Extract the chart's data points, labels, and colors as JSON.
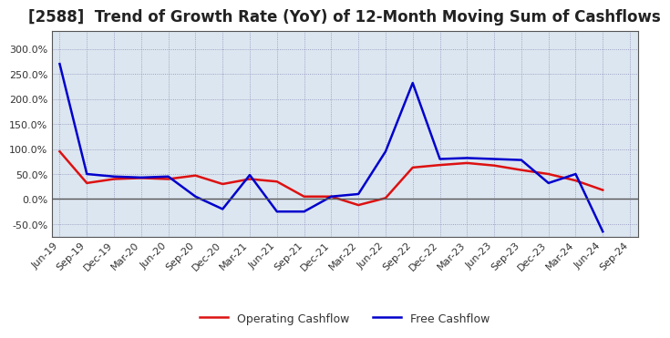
{
  "title": "[2588]  Trend of Growth Rate (YoY) of 12-Month Moving Sum of Cashflows",
  "title_fontsize": 12,
  "labels": [
    "Jun-19",
    "Sep-19",
    "Dec-19",
    "Mar-20",
    "Jun-20",
    "Sep-20",
    "Dec-20",
    "Mar-21",
    "Jun-21",
    "Sep-21",
    "Dec-21",
    "Mar-22",
    "Jun-22",
    "Sep-22",
    "Dec-22",
    "Mar-23",
    "Jun-23",
    "Sep-23",
    "Dec-23",
    "Mar-24",
    "Jun-24",
    "Sep-24"
  ],
  "operating_cashflow": [
    95,
    32,
    40,
    42,
    40,
    47,
    30,
    40,
    35,
    5,
    5,
    -12,
    2,
    63,
    68,
    72,
    67,
    58,
    50,
    37,
    18,
    null
  ],
  "free_cashflow": [
    270,
    50,
    45,
    43,
    45,
    5,
    -20,
    48,
    -25,
    -25,
    5,
    10,
    95,
    232,
    80,
    82,
    80,
    78,
    32,
    50,
    -65,
    null
  ],
  "operating_color": "#dd1111",
  "free_color": "#0000cc",
  "ylim": [
    -75,
    335
  ],
  "yticks": [
    -50.0,
    0.0,
    50.0,
    100.0,
    150.0,
    200.0,
    250.0,
    300.0
  ],
  "plot_bg_color": "#dce6f0",
  "outer_bg_color": "#ffffff",
  "grid_color": "#7777aa",
  "legend_labels": [
    "Operating Cashflow",
    "Free Cashflow"
  ],
  "spine_color": "#555555",
  "zero_line_color": "#555555"
}
